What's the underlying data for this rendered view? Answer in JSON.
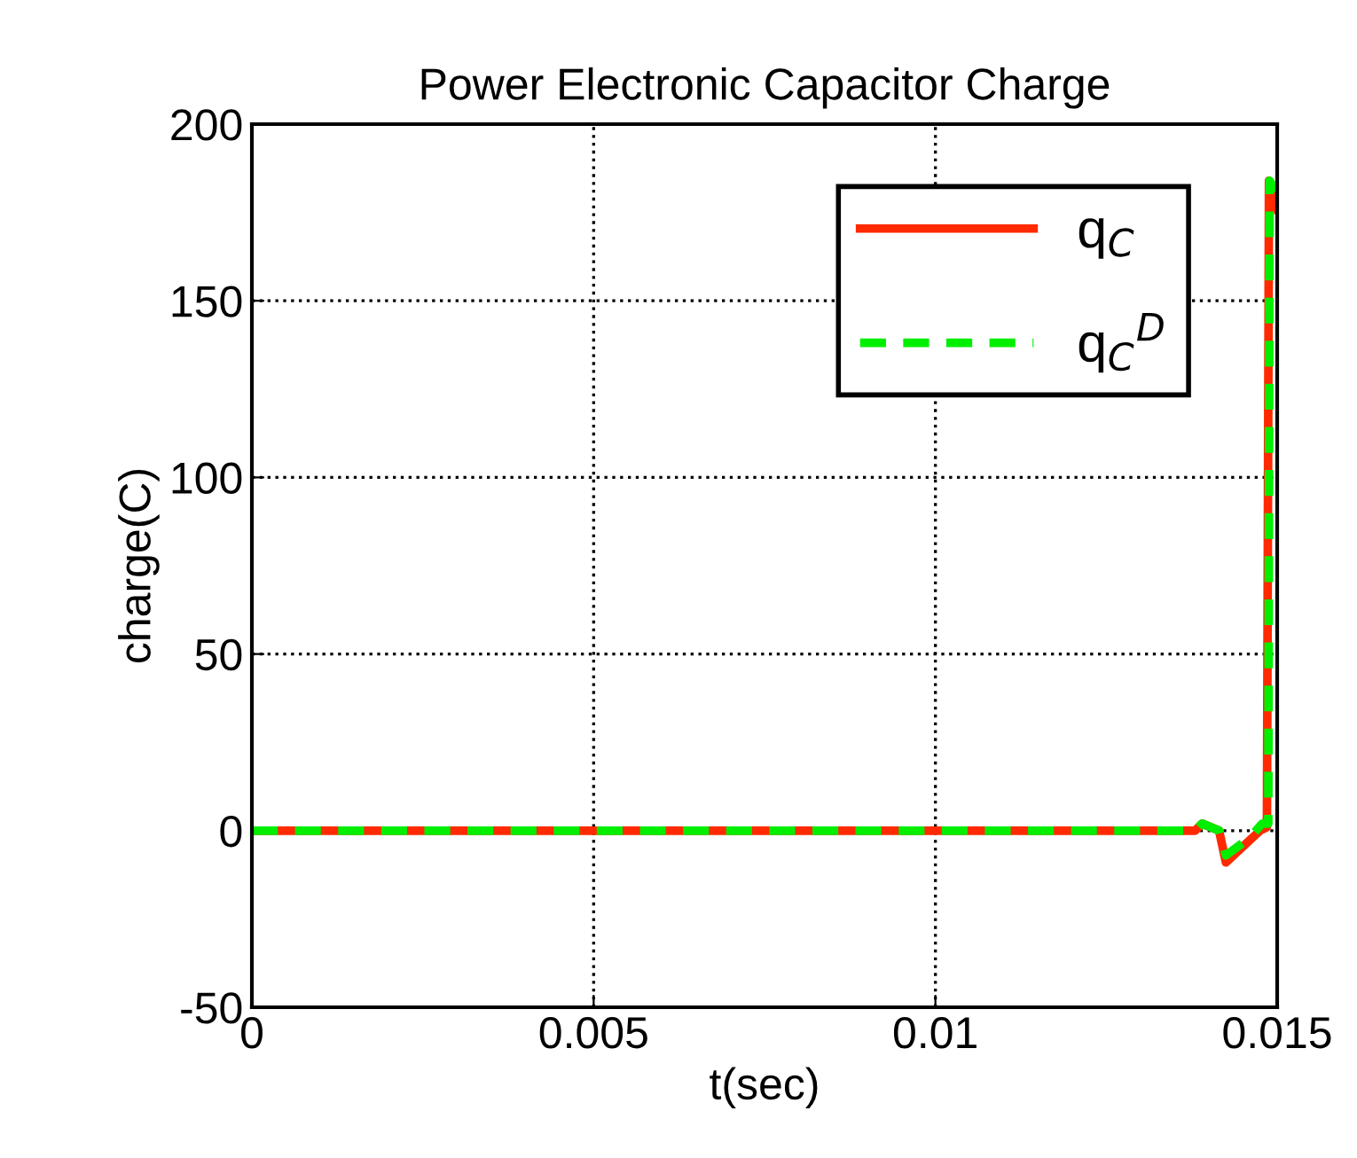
{
  "chart_data": {
    "type": "line",
    "title": "Power Electronic Capacitor Charge",
    "xlabel": "t(sec)",
    "ylabel": "charge(C)",
    "xlim": [
      0,
      0.015
    ],
    "ylim": [
      -50,
      200
    ],
    "xticks": [
      0,
      0.005,
      0.01,
      0.015
    ],
    "yticks": [
      -50,
      0,
      50,
      100,
      150,
      200
    ],
    "grid": true,
    "legend": "top right",
    "series": [
      {
        "name": "q$_{C}$",
        "color": "#ff2a00",
        "line_style": "solid",
        "x": [
          0,
          0.0138,
          0.0139,
          0.01415,
          0.01425,
          0.01475,
          0.01485,
          0.01488,
          0.015
        ],
        "values": [
          0,
          0,
          2,
          0,
          -9,
          0,
          1,
          184,
          176
        ]
      },
      {
        "name": "q$_{C}$$^{D}$",
        "color": "#00ee00",
        "line_style": "dashed",
        "x": [
          0,
          0.0138,
          0.0139,
          0.01415,
          0.01425,
          0.0146,
          0.01478,
          0.01487,
          0.01489,
          0.015
        ],
        "values": [
          0,
          0,
          2,
          0,
          -7,
          -2,
          2,
          2,
          184,
          180
        ]
      }
    ]
  }
}
